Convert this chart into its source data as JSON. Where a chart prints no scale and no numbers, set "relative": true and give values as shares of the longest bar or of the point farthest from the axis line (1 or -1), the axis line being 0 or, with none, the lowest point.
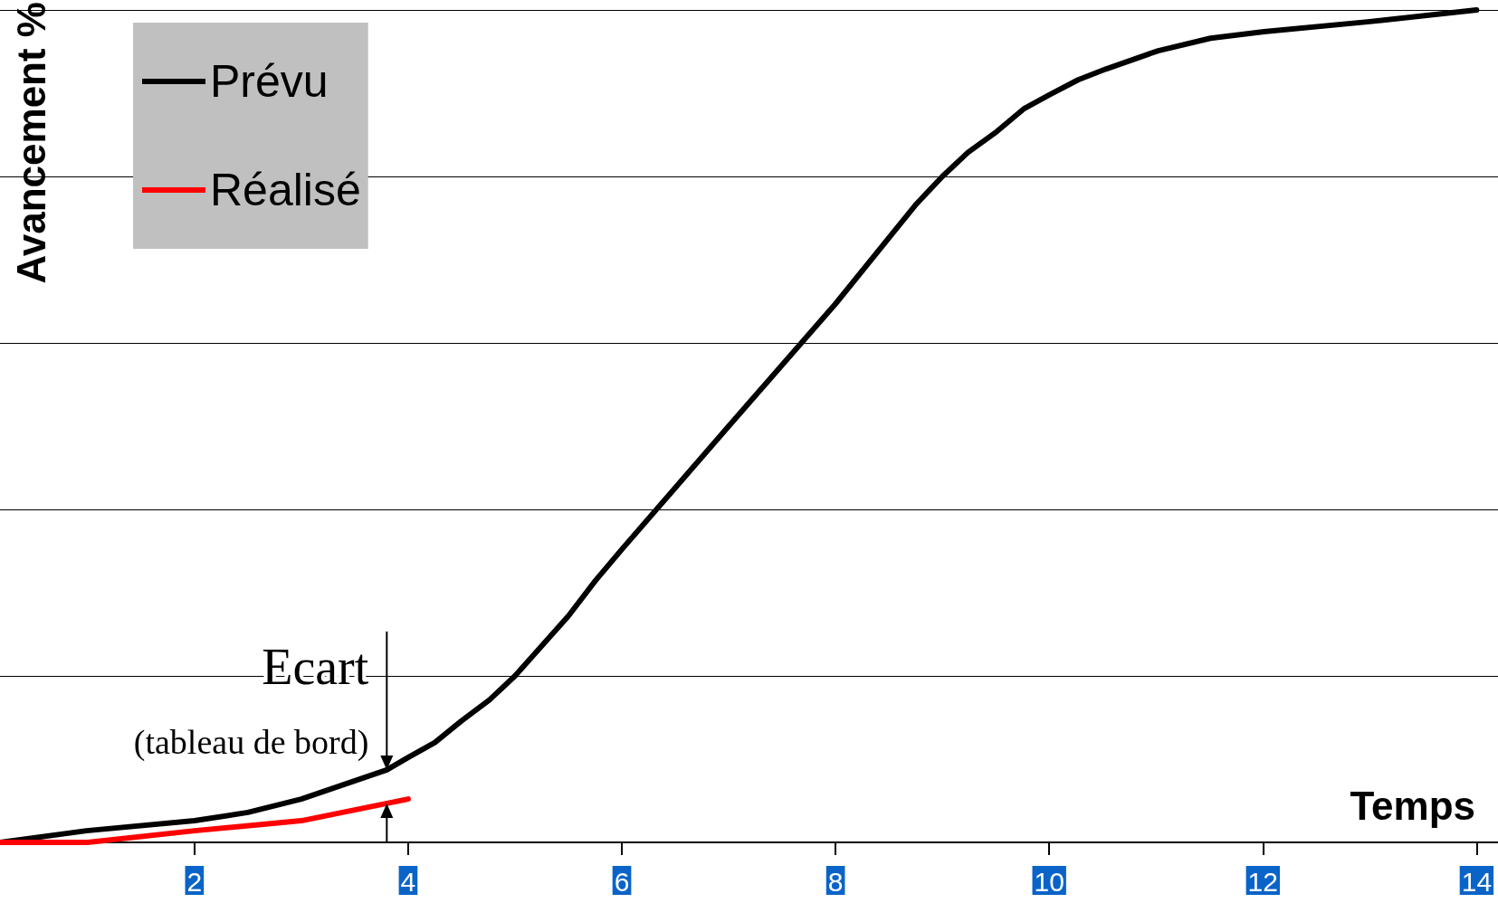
{
  "chart_data": {
    "type": "line",
    "relative": true,
    "xlabel": "Temps",
    "ylabel": "Avancement %",
    "xlim": [
      0.18,
      14.2
    ],
    "xticks": [
      2,
      4,
      6,
      8,
      10,
      12,
      14
    ],
    "grid": "y",
    "legend": "top left",
    "marker": "none",
    "line_style": "solid",
    "series": [
      {
        "name": "Prévu",
        "color": "#000000",
        "x": [
          0.18,
          0.99,
          2,
          2.5,
          3,
          3.8,
          4,
          4.25,
          4.5,
          4.76,
          5,
          5.5,
          5.75,
          6,
          7,
          8,
          8.75,
          9,
          9.24,
          9.51,
          9.76,
          10,
          10.27,
          10.53,
          11.02,
          11.51,
          12.01,
          13,
          14
        ],
        "values": [
          0,
          0.014,
          0.026,
          0.036,
          0.052,
          0.087,
          0.102,
          0.12,
          0.146,
          0.171,
          0.2,
          0.272,
          0.314,
          0.352,
          0.5,
          0.647,
          0.766,
          0.8,
          0.829,
          0.854,
          0.881,
          0.898,
          0.916,
          0.929,
          0.951,
          0.966,
          0.974,
          0.986,
          1
        ]
      },
      {
        "name": "Réalisé",
        "color": "#ff0000",
        "x": [
          0.18,
          1,
          2,
          3,
          4
        ],
        "values": [
          0,
          0,
          0.014,
          0.026,
          0.052
        ]
      }
    ],
    "annotations": [
      {
        "text": "Ecart",
        "x": 3.8,
        "y": 0.087
      },
      "(tableau de bord)"
    ]
  }
}
